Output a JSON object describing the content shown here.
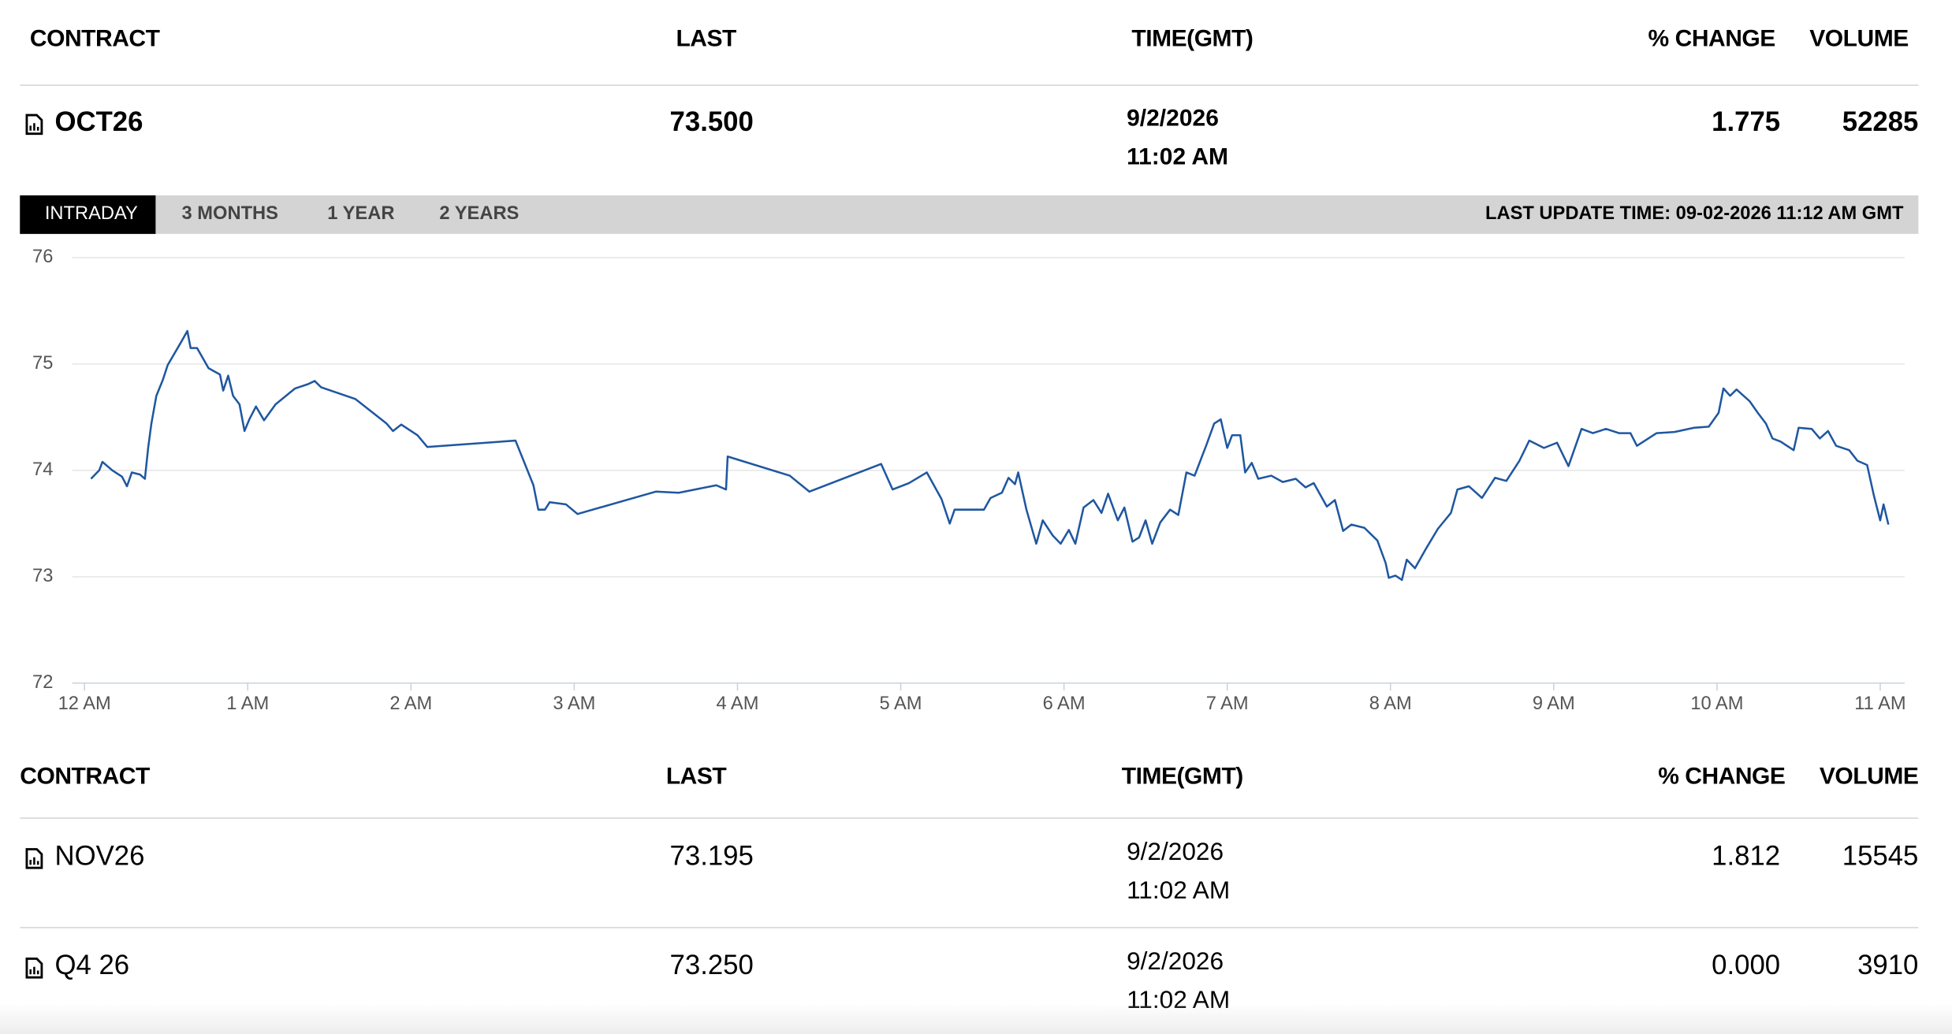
{
  "header": {
    "columns": [
      "CONTRACT",
      "LAST",
      "TIME(GMT)",
      "% CHANGE",
      "VOLUME"
    ]
  },
  "main_row": {
    "contract": "OCT26",
    "last": "73.500",
    "date": "9/2/2026",
    "time": "11:02 AM",
    "change": "1.775",
    "volume": "52285"
  },
  "tabs": [
    "INTRADAY",
    "3 MONTHS",
    "1 YEAR",
    "2 YEARS"
  ],
  "last_update": "LAST UPDATE TIME: 09-02-2026 11:12 AM GMT",
  "chart_data": {
    "type": "line",
    "color": "#1f57a0",
    "grid": true,
    "xlim": [
      -0.06,
      11.15
    ],
    "ylim": [
      72,
      76
    ],
    "yticks": [
      72,
      73,
      74,
      75,
      76
    ],
    "xticks": [
      {
        "value": 0,
        "label": "12 AM"
      },
      {
        "value": 1,
        "label": "1 AM"
      },
      {
        "value": 2,
        "label": "2 AM"
      },
      {
        "value": 3,
        "label": "3 AM"
      },
      {
        "value": 4,
        "label": "4 AM"
      },
      {
        "value": 5,
        "label": "5 AM"
      },
      {
        "value": 6,
        "label": "6 AM"
      },
      {
        "value": 7,
        "label": "7 AM"
      },
      {
        "value": 8,
        "label": "8 AM"
      },
      {
        "value": 9,
        "label": "9 AM"
      },
      {
        "value": 10,
        "label": "10 AM"
      },
      {
        "value": 11,
        "label": "11 AM"
      }
    ],
    "x": [
      0.04,
      0.09,
      0.11,
      0.17,
      0.23,
      0.26,
      0.29,
      0.34,
      0.37,
      0.39,
      0.41,
      0.44,
      0.48,
      0.51,
      0.59,
      0.63,
      0.65,
      0.69,
      0.76,
      0.83,
      0.85,
      0.88,
      0.91,
      0.95,
      0.98,
      1.01,
      1.05,
      1.1,
      1.17,
      1.29,
      1.37,
      1.41,
      1.45,
      1.66,
      1.85,
      1.89,
      1.94,
      2.04,
      2.1,
      2.64,
      2.75,
      2.78,
      2.82,
      2.85,
      2.95,
      3.02,
      3.5,
      3.64,
      3.87,
      3.93,
      3.94,
      4.32,
      4.44,
      4.88,
      4.95,
      5.05,
      5.16,
      5.25,
      5.3,
      5.33,
      5.39,
      5.51,
      5.55,
      5.62,
      5.66,
      5.7,
      5.72,
      5.77,
      5.83,
      5.87,
      5.93,
      5.98,
      6.03,
      6.07,
      6.12,
      6.18,
      6.23,
      6.27,
      6.33,
      6.37,
      6.42,
      6.46,
      6.5,
      6.54,
      6.59,
      6.65,
      6.7,
      6.75,
      6.8,
      6.87,
      6.92,
      6.96,
      7.0,
      7.03,
      7.08,
      7.11,
      7.15,
      7.19,
      7.27,
      7.34,
      7.42,
      7.48,
      7.53,
      7.61,
      7.66,
      7.71,
      7.76,
      7.84,
      7.92,
      7.97,
      7.99,
      8.03,
      8.07,
      8.1,
      8.15,
      8.22,
      8.29,
      8.37,
      8.41,
      8.48,
      8.56,
      8.64,
      8.71,
      8.79,
      8.85,
      8.94,
      9.02,
      9.09,
      9.17,
      9.24,
      9.32,
      9.4,
      9.47,
      9.51,
      9.63,
      9.74,
      9.86,
      9.95,
      10.01,
      10.04,
      10.08,
      10.12,
      10.2,
      10.25,
      10.3,
      10.34,
      10.39,
      10.47,
      10.5,
      10.58,
      10.63,
      10.68,
      10.73,
      10.81,
      10.86,
      10.92,
      10.96,
      11.0,
      11.02,
      11.05
    ],
    "values": [
      73.92,
      74.0,
      74.08,
      74.0,
      73.94,
      73.85,
      73.98,
      73.96,
      73.92,
      74.21,
      74.44,
      74.7,
      74.85,
      74.99,
      75.2,
      75.31,
      75.15,
      75.15,
      74.96,
      74.9,
      74.75,
      74.89,
      74.7,
      74.62,
      74.37,
      74.48,
      74.6,
      74.47,
      74.62,
      74.77,
      74.81,
      74.84,
      74.78,
      74.67,
      74.44,
      74.37,
      74.43,
      74.33,
      74.22,
      74.28,
      73.86,
      73.63,
      73.63,
      73.7,
      73.68,
      73.59,
      73.8,
      73.79,
      73.86,
      73.82,
      74.13,
      73.95,
      73.8,
      74.06,
      73.82,
      73.88,
      73.98,
      73.73,
      73.5,
      73.63,
      73.63,
      73.63,
      73.74,
      73.79,
      73.93,
      73.87,
      73.98,
      73.63,
      73.31,
      73.53,
      73.39,
      73.31,
      73.44,
      73.31,
      73.65,
      73.72,
      73.6,
      73.78,
      73.53,
      73.65,
      73.33,
      73.37,
      73.53,
      73.31,
      73.51,
      73.63,
      73.58,
      73.98,
      73.95,
      74.23,
      74.44,
      74.48,
      74.21,
      74.33,
      74.33,
      73.98,
      74.07,
      73.92,
      73.95,
      73.89,
      73.92,
      73.84,
      73.88,
      73.66,
      73.72,
      73.43,
      73.49,
      73.46,
      73.34,
      73.13,
      72.99,
      73.01,
      72.97,
      73.16,
      73.08,
      73.27,
      73.45,
      73.6,
      73.82,
      73.85,
      73.74,
      73.93,
      73.9,
      74.09,
      74.28,
      74.21,
      74.26,
      74.04,
      74.39,
      74.35,
      74.39,
      74.35,
      74.35,
      74.23,
      74.35,
      74.36,
      74.4,
      74.41,
      74.54,
      74.77,
      74.7,
      74.76,
      74.65,
      74.54,
      74.44,
      74.3,
      74.27,
      74.19,
      74.4,
      74.39,
      74.3,
      74.37,
      74.23,
      74.19,
      74.09,
      74.05,
      73.77,
      73.53,
      73.68,
      73.49
    ]
  },
  "table": {
    "columns": [
      "CONTRACT",
      "LAST",
      "TIME(GMT)",
      "% CHANGE",
      "VOLUME"
    ],
    "rows": [
      [
        "NOV26",
        "73.195",
        "9/2/2026",
        "11:02 AM",
        "1.812",
        "15545"
      ],
      [
        "Q4 26",
        "73.250",
        "9/2/2026",
        "11:02 AM",
        "0.000",
        "3910"
      ]
    ]
  }
}
